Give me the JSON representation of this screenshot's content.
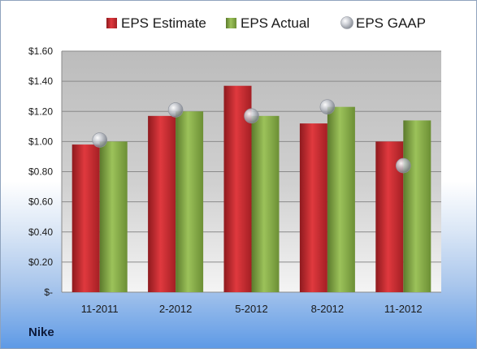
{
  "company": "Nike",
  "chart_data": {
    "type": "bar",
    "categories": [
      "11-2011",
      "2-2012",
      "5-2012",
      "8-2012",
      "11-2012"
    ],
    "series": [
      {
        "name": "EPS Estimate",
        "kind": "bar",
        "color": "#c0272d",
        "values": [
          0.98,
          1.17,
          1.37,
          1.12,
          1.0
        ]
      },
      {
        "name": "EPS Actual",
        "kind": "bar",
        "color": "#7da241",
        "values": [
          1.0,
          1.2,
          1.17,
          1.23,
          1.14
        ]
      },
      {
        "name": "EPS GAAP",
        "kind": "marker",
        "color": "#b9bcc4",
        "values": [
          1.01,
          1.21,
          1.17,
          1.23,
          0.84
        ]
      }
    ],
    "y_ticks": [
      0,
      0.2,
      0.4,
      0.6,
      0.8,
      1.0,
      1.2,
      1.4,
      1.6
    ],
    "y_tick_labels": [
      "$-",
      "$0.20",
      "$0.40",
      "$0.60",
      "$0.80",
      "$1.00",
      "$1.20",
      "$1.40",
      "$1.60"
    ],
    "ylim": [
      0,
      1.6
    ],
    "grid": true,
    "legend_position": "top"
  }
}
